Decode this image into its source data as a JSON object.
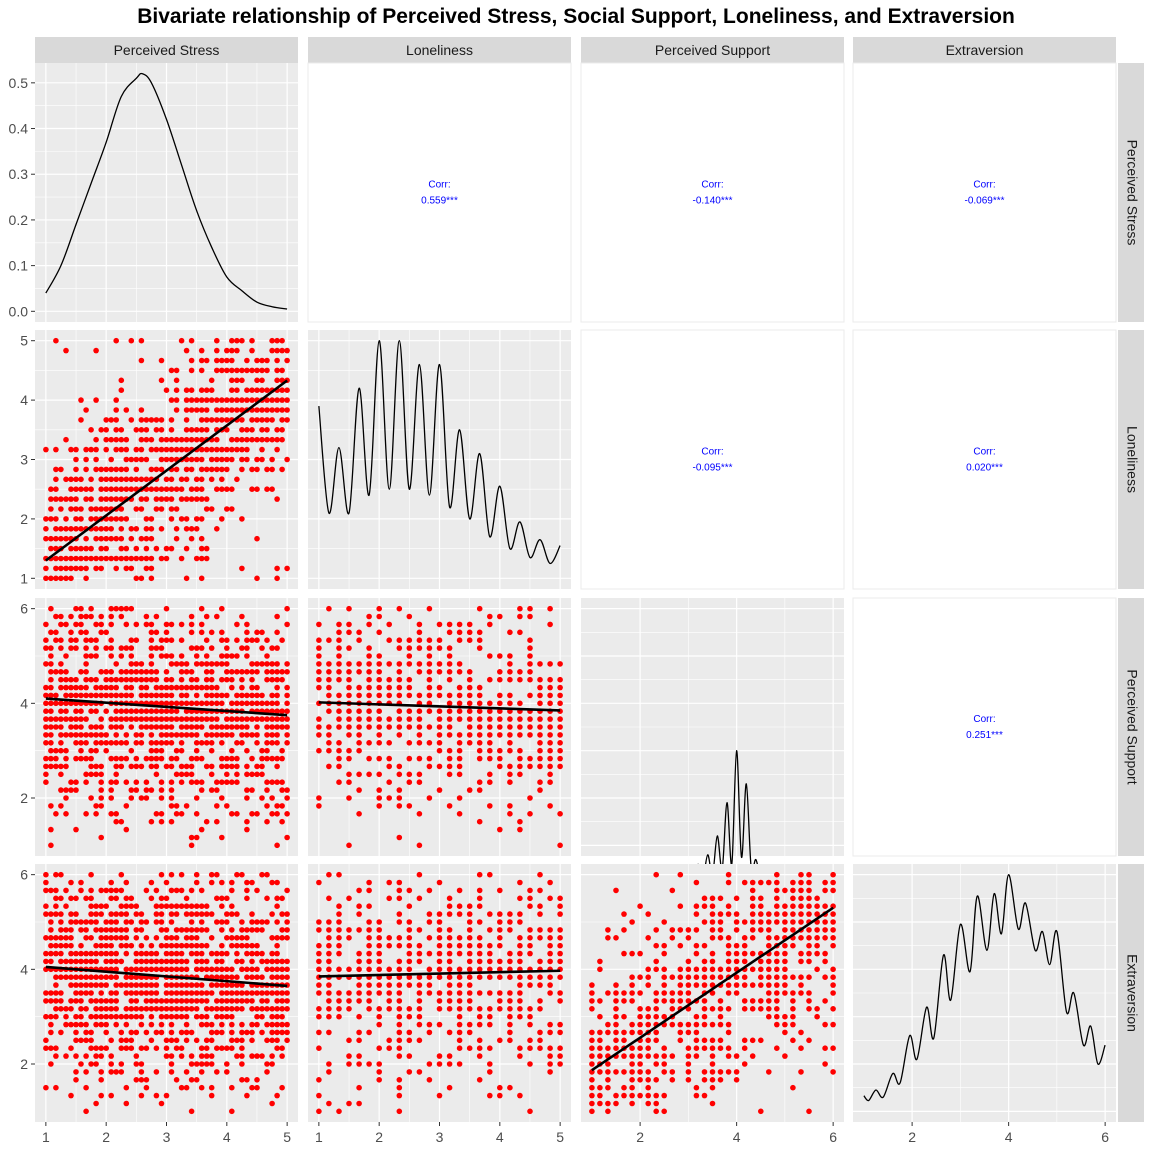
{
  "title": "Bivariate relationship of Perceived Stress, Social Support, Loneliness, and Extraversion",
  "colors": {
    "points": "#ff0000",
    "corr_text": "#0000ff",
    "panel_bg": "#ebebeb",
    "strip_bg": "#d9d9d9",
    "grid": "#ffffff",
    "line": "#000000"
  },
  "chart_data": {
    "type": "scatter-matrix",
    "variables": [
      {
        "key": "stress",
        "label": "Perceived Stress",
        "range": [
          1,
          5
        ],
        "ticks": [
          1,
          2,
          3,
          4,
          5
        ]
      },
      {
        "key": "loneliness",
        "label": "Loneliness",
        "range": [
          1,
          5
        ],
        "ticks": [
          1,
          2,
          3,
          4,
          5
        ]
      },
      {
        "key": "support",
        "label": "Perceived Support",
        "range": [
          1,
          6
        ],
        "ticks": [
          2,
          4,
          6
        ]
      },
      {
        "key": "extraversion",
        "label": "Extraversion",
        "range": [
          1,
          6
        ],
        "ticks": [
          2,
          4,
          6
        ]
      }
    ],
    "density_axis": {
      "range": [
        0,
        0.52
      ],
      "ticks": [
        "0.0",
        "0.1",
        "0.2",
        "0.3",
        "0.4",
        "0.5"
      ]
    },
    "correlations": [
      {
        "row": 0,
        "col": 1,
        "label": "Corr:",
        "value": "0.559***"
      },
      {
        "row": 0,
        "col": 2,
        "label": "Corr:",
        "value": "-0.140***"
      },
      {
        "row": 0,
        "col": 3,
        "label": "Corr:",
        "value": "-0.069***"
      },
      {
        "row": 1,
        "col": 2,
        "label": "Corr:",
        "value": "-0.095***"
      },
      {
        "row": 1,
        "col": 3,
        "label": "Corr:",
        "value": "0.020***"
      },
      {
        "row": 2,
        "col": 3,
        "label": "Corr:",
        "value": "0.251***"
      }
    ],
    "regression_lines": [
      {
        "x_var": 0,
        "y_var": 1,
        "x": [
          1,
          5
        ],
        "y": [
          1.3,
          4.33
        ]
      },
      {
        "x_var": 0,
        "y_var": 2,
        "x": [
          1,
          5
        ],
        "y": [
          4.1,
          3.75
        ]
      },
      {
        "x_var": 1,
        "y_var": 2,
        "x": [
          1,
          5
        ],
        "y": [
          4.02,
          3.85
        ]
      },
      {
        "x_var": 0,
        "y_var": 3,
        "x": [
          1,
          5
        ],
        "y": [
          4.05,
          3.65
        ]
      },
      {
        "x_var": 1,
        "y_var": 3,
        "x": [
          1,
          5
        ],
        "y": [
          3.85,
          3.97
        ]
      },
      {
        "x_var": 2,
        "y_var": 3,
        "x": [
          1,
          6
        ],
        "y": [
          1.87,
          5.3
        ]
      }
    ],
    "densities": [
      {
        "var": 0,
        "x": [
          1,
          1.25,
          1.5,
          1.75,
          2,
          2.25,
          2.5,
          2.6,
          2.75,
          3,
          3.25,
          3.5,
          3.75,
          4,
          4.25,
          4.5,
          4.75,
          5
        ],
        "y": [
          0.04,
          0.1,
          0.19,
          0.28,
          0.37,
          0.47,
          0.51,
          0.52,
          0.5,
          0.42,
          0.32,
          0.22,
          0.14,
          0.075,
          0.045,
          0.02,
          0.01,
          0.005
        ]
      },
      {
        "var": 1,
        "x": [
          1,
          1.167,
          1.333,
          1.5,
          1.667,
          1.833,
          2,
          2.167,
          2.333,
          2.5,
          2.667,
          2.833,
          3,
          3.167,
          3.333,
          3.5,
          3.667,
          3.833,
          4,
          4.167,
          4.333,
          4.5,
          4.667,
          4.833,
          5
        ],
        "y": [
          3.9,
          2.1,
          3.2,
          2.1,
          4.2,
          2.4,
          5.0,
          2.5,
          5.0,
          2.5,
          4.6,
          2.4,
          4.6,
          2.2,
          3.5,
          2.0,
          3.1,
          1.7,
          2.55,
          1.5,
          1.95,
          1.35,
          1.65,
          1.25,
          1.55
        ]
      },
      {
        "var": 2,
        "x": [
          1,
          2,
          2.3,
          2.6,
          2.8,
          2.9,
          3.0,
          3.1,
          3.2,
          3.3,
          3.4,
          3.5,
          3.6,
          3.7,
          3.8,
          3.9,
          4.0,
          4.1,
          4.2,
          4.3,
          4.4,
          4.5,
          4.6,
          4.7,
          4.8,
          5.0,
          6
        ],
        "y": [
          0.1,
          0.1,
          0.15,
          0.22,
          0.35,
          0.2,
          0.45,
          0.22,
          0.6,
          0.3,
          0.8,
          0.38,
          1.2,
          0.5,
          1.9,
          0.6,
          3.0,
          0.75,
          2.3,
          0.55,
          0.7,
          0.3,
          0.35,
          0.18,
          0.13,
          0.1,
          0.1
        ]
      },
      {
        "var": 3,
        "x": [
          1,
          1.1,
          1.25,
          1.4,
          1.6,
          1.75,
          1.95,
          2.1,
          2.3,
          2.45,
          2.65,
          2.8,
          3.0,
          3.2,
          3.35,
          3.55,
          3.7,
          3.85,
          4.0,
          4.2,
          4.35,
          4.55,
          4.7,
          4.85,
          5.0,
          5.2,
          5.35,
          5.55,
          5.7,
          5.85,
          6.0
        ],
        "y": [
          1.33,
          1.23,
          1.45,
          1.3,
          1.8,
          1.6,
          2.6,
          2.1,
          3.2,
          2.55,
          4.3,
          3.35,
          4.95,
          3.95,
          5.55,
          4.4,
          5.6,
          4.75,
          6.0,
          4.85,
          5.4,
          4.4,
          4.8,
          4.1,
          4.8,
          3.1,
          3.5,
          2.4,
          2.8,
          2.0,
          2.4
        ]
      }
    ]
  }
}
